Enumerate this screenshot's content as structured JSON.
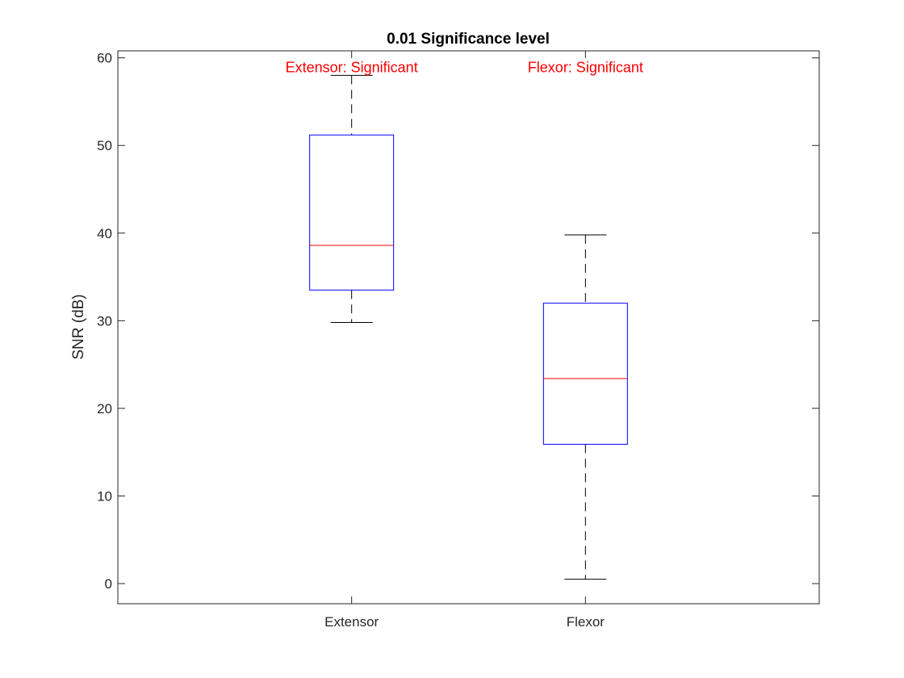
{
  "chart_data": {
    "type": "boxplot",
    "title": "0.01 Significance level",
    "xlabel": "",
    "ylabel": "SNR (dB)",
    "ylim": [
      -2.3,
      60.8
    ],
    "yticks": [
      "0",
      "10",
      "20",
      "30",
      "40",
      "50",
      "60"
    ],
    "categories": [
      "Extensor",
      "Flexor"
    ],
    "boxes": [
      {
        "category": "Extensor",
        "min": 29.8,
        "q1": 33.5,
        "median": 38.6,
        "q3": 51.2,
        "max": 58.0
      },
      {
        "category": "Flexor",
        "min": 0.5,
        "q1": 15.9,
        "median": 23.4,
        "q3": 32.0,
        "max": 39.8
      }
    ],
    "annotations": [
      {
        "text": "Extensor: Significant",
        "category": "Extensor",
        "y": 58.9
      },
      {
        "text": "Flexor: Significant",
        "category": "Flexor",
        "y": 58.9
      }
    ],
    "grid": false,
    "colors": {
      "box": "#0000ff",
      "median": "#ff0000",
      "whisker": "#000000",
      "annotation": "#ff0000",
      "axis": "#262626"
    }
  }
}
